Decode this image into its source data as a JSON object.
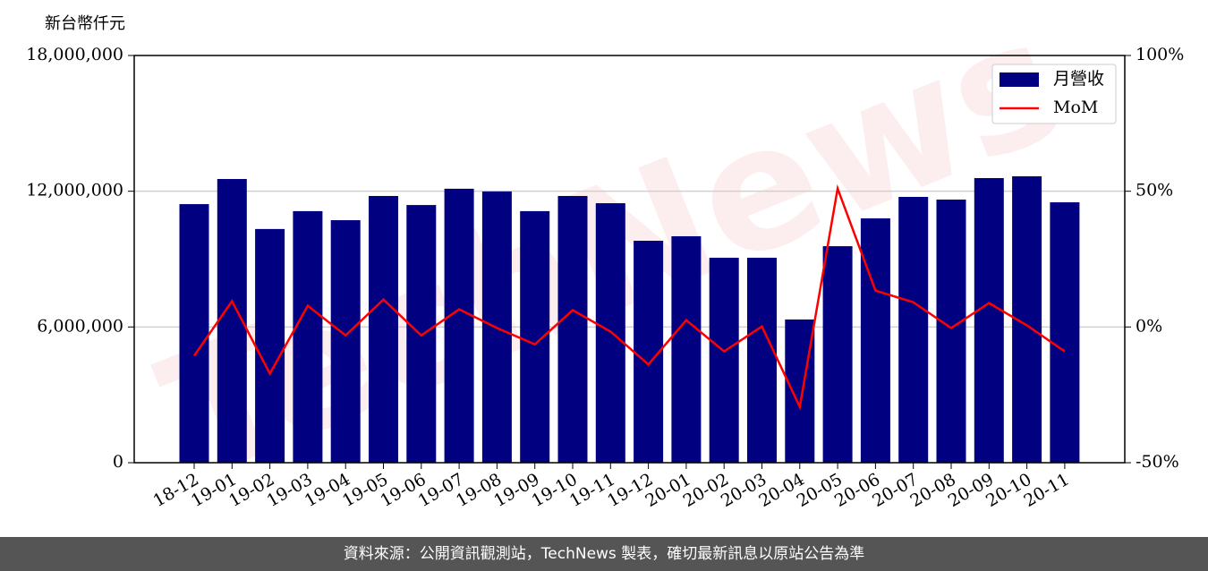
{
  "chart_data": {
    "type": "combo",
    "y_label": "新台幣仟元",
    "watermark": "TechNews",
    "categories": [
      "18-12",
      "19-01",
      "19-02",
      "19-03",
      "19-04",
      "19-05",
      "19-06",
      "19-07",
      "19-08",
      "19-09",
      "19-10",
      "19-11",
      "19-12",
      "20-01",
      "20-02",
      "20-03",
      "20-04",
      "20-05",
      "20-06",
      "20-07",
      "20-08",
      "20-09",
      "20-10",
      "20-11"
    ],
    "series": [
      {
        "name": "月營收",
        "type": "bar",
        "color": "#000080",
        "values": [
          11430000,
          12540000,
          10330000,
          11120000,
          10720000,
          11790000,
          11390000,
          12110000,
          11990000,
          11120000,
          11790000,
          11470000,
          9810000,
          10010000,
          9060000,
          9060000,
          6330000,
          9570000,
          10800000,
          11750000,
          11630000,
          12580000,
          12660000,
          11510000
        ]
      },
      {
        "name": "MoM",
        "type": "line",
        "axis": "y2",
        "color": "#ff0000",
        "values": [
          -10.6,
          9.5,
          -17.2,
          7.8,
          -3.1,
          10.1,
          -3.1,
          6.5,
          -0.4,
          -6.4,
          6.2,
          -1.7,
          -13.8,
          2.5,
          -9.0,
          0.2,
          -29.4,
          51.0,
          13.4,
          9.1,
          -0.4,
          8.8,
          0.6,
          -9.0
        ]
      }
    ],
    "ylim": [
      0,
      18000000
    ],
    "yticks": [
      0,
      {
        "value": 6000000,
        "label": "6,000,000"
      },
      {
        "value": 12000000,
        "label": "12,000,000"
      },
      {
        "value": 18000000,
        "label": "18,000,000"
      }
    ],
    "y2lim": [
      -50,
      100
    ],
    "y2ticks": [
      {
        "value": -50,
        "label": "-50%"
      },
      {
        "value": 0,
        "label": "0%"
      },
      {
        "value": 50,
        "label": "50%"
      },
      {
        "value": 100,
        "label": "100%"
      }
    ],
    "grid": true,
    "legend": "upper right"
  },
  "footer": "資料來源：公開資訊觀測站，TechNews 製表，確切最新訊息以原站公告為準"
}
